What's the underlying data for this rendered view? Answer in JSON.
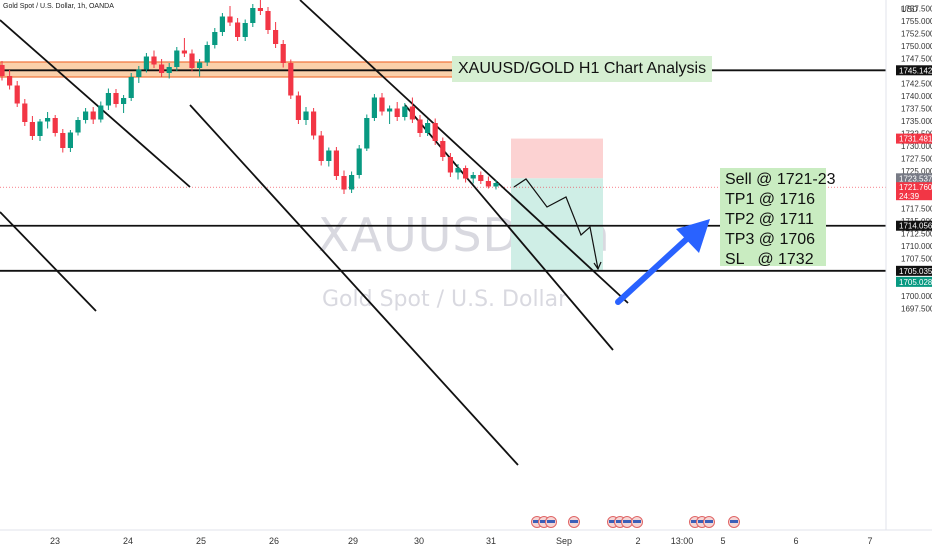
{
  "legend": "Gold Spot / U.S. Dollar, 1h, OANDA",
  "watermark": {
    "symbol": "XAUUSD, 1h",
    "name": "Gold Spot / U.S. Dollar"
  },
  "chart_title": "XAUUSD/GOLD H1 Chart Analysis",
  "trade_plan": [
    "Sell @ 1721-23",
    "TP1 @ 1716",
    "TP2 @ 1711",
    "TP3 @ 1706",
    "SL   @ 1732"
  ],
  "chart_data": {
    "type": "candlestick",
    "symbol": "XAUUSD",
    "timeframe": "1h",
    "source": "OANDA",
    "currency": "USD",
    "ylim": [
      1695,
      1760
    ],
    "y_ticks": [
      1697.5,
      1700,
      1702.5,
      1705,
      1707.5,
      1710,
      1712.5,
      1715,
      1717.5,
      1720,
      1722.5,
      1725,
      1727.5,
      1730,
      1732.5,
      1735,
      1737.5,
      1740,
      1742.5,
      1745,
      1747.5,
      1750,
      1752.5,
      1755,
      1757.5
    ],
    "x_ticks": [
      "23",
      "24",
      "25",
      "26",
      "29",
      "30",
      "31",
      "Sep",
      "2",
      "13:00",
      "5",
      "6",
      "7"
    ],
    "x_tick_positions": [
      0,
      1,
      2,
      3,
      4,
      5,
      6,
      7,
      8,
      8.6,
      9,
      10,
      11
    ],
    "price_labels": [
      {
        "value": "1745.142",
        "color": "#ffffff",
        "bg": "#111111"
      },
      {
        "value": "1731.481",
        "color": "#ffffff",
        "bg": "#f23645"
      },
      {
        "value": "1723.537",
        "color": "#ffffff",
        "bg": "#787b86"
      },
      {
        "value": "1721.760",
        "color": "#ffffff",
        "bg": "#f23645",
        "sub": "24:39"
      },
      {
        "value": "1714.056",
        "color": "#ffffff",
        "bg": "#111111"
      },
      {
        "value": "1705.035",
        "color": "#ffffff",
        "bg": "#111111"
      },
      {
        "value": "1705.028",
        "color": "#ffffff",
        "bg": "#089981"
      }
    ],
    "horizontal_levels": [
      1745.142,
      1714.056,
      1705.035
    ],
    "resistance_zone": [
      1743.8,
      1746.8
    ],
    "position": {
      "entry": 1723.537,
      "stop": 1731.481,
      "target": 1705.028
    },
    "candles": [
      [
        1746.2,
        1747.0,
        1743.1,
        1744.0
      ],
      [
        1744.0,
        1745.2,
        1741.3,
        1742.1
      ],
      [
        1742.1,
        1743.0,
        1737.8,
        1738.5
      ],
      [
        1738.5,
        1739.4,
        1734.0,
        1734.8
      ],
      [
        1734.8,
        1736.0,
        1731.2,
        1732.0
      ],
      [
        1732.0,
        1735.4,
        1731.0,
        1734.9
      ],
      [
        1734.9,
        1736.8,
        1733.5,
        1735.6
      ],
      [
        1735.6,
        1736.2,
        1731.9,
        1732.6
      ],
      [
        1732.6,
        1733.4,
        1728.7,
        1729.6
      ],
      [
        1729.6,
        1733.2,
        1728.8,
        1732.7
      ],
      [
        1732.7,
        1735.8,
        1732.1,
        1735.2
      ],
      [
        1735.2,
        1737.6,
        1734.5,
        1736.9
      ],
      [
        1736.9,
        1737.8,
        1734.4,
        1735.3
      ],
      [
        1735.3,
        1738.9,
        1734.7,
        1738.1
      ],
      [
        1738.1,
        1741.5,
        1737.2,
        1740.6
      ],
      [
        1740.6,
        1741.4,
        1737.7,
        1738.4
      ],
      [
        1738.4,
        1740.2,
        1736.6,
        1739.6
      ],
      [
        1739.6,
        1744.6,
        1739.0,
        1743.8
      ],
      [
        1743.8,
        1746.0,
        1742.6,
        1745.3
      ],
      [
        1745.3,
        1748.6,
        1744.7,
        1747.9
      ],
      [
        1747.9,
        1749.1,
        1745.6,
        1746.3
      ],
      [
        1746.3,
        1747.4,
        1743.8,
        1744.6
      ],
      [
        1744.6,
        1746.6,
        1743.5,
        1745.8
      ],
      [
        1745.8,
        1749.8,
        1745.0,
        1749.1
      ],
      [
        1749.1,
        1751.6,
        1747.8,
        1748.5
      ],
      [
        1748.5,
        1749.3,
        1744.9,
        1745.6
      ],
      [
        1745.6,
        1747.4,
        1743.9,
        1746.7
      ],
      [
        1746.7,
        1750.9,
        1746.0,
        1750.2
      ],
      [
        1750.2,
        1753.6,
        1749.5,
        1752.8
      ],
      [
        1752.8,
        1756.6,
        1752.0,
        1755.9
      ],
      [
        1755.9,
        1758.0,
        1754.0,
        1754.7
      ],
      [
        1754.7,
        1755.6,
        1751.0,
        1751.8
      ],
      [
        1751.8,
        1755.3,
        1751.0,
        1754.6
      ],
      [
        1754.6,
        1758.4,
        1753.8,
        1757.6
      ],
      [
        1757.6,
        1759.6,
        1756.2,
        1757.0
      ],
      [
        1757.0,
        1757.8,
        1752.4,
        1753.2
      ],
      [
        1753.2,
        1754.8,
        1749.6,
        1750.4
      ],
      [
        1750.4,
        1751.2,
        1745.7,
        1746.6
      ],
      [
        1746.6,
        1747.3,
        1739.4,
        1740.1
      ],
      [
        1740.1,
        1740.9,
        1734.4,
        1735.2
      ],
      [
        1735.2,
        1737.8,
        1734.2,
        1736.9
      ],
      [
        1736.9,
        1737.6,
        1731.3,
        1732.1
      ],
      [
        1732.1,
        1733.0,
        1726.1,
        1727.0
      ],
      [
        1727.0,
        1729.7,
        1725.9,
        1729.1
      ],
      [
        1729.1,
        1729.8,
        1723.2,
        1724.0
      ],
      [
        1724.0,
        1725.1,
        1720.4,
        1721.3
      ],
      [
        1721.3,
        1724.9,
        1720.6,
        1724.2
      ],
      [
        1724.2,
        1730.2,
        1723.5,
        1729.5
      ],
      [
        1729.5,
        1736.3,
        1729.0,
        1735.6
      ],
      [
        1735.6,
        1740.4,
        1735.0,
        1739.7
      ],
      [
        1739.7,
        1740.6,
        1736.1,
        1736.9
      ],
      [
        1736.9,
        1738.1,
        1734.4,
        1737.5
      ],
      [
        1737.5,
        1738.8,
        1735.0,
        1735.8
      ],
      [
        1735.8,
        1738.6,
        1735.1,
        1737.9
      ],
      [
        1737.9,
        1739.7,
        1734.6,
        1735.3
      ],
      [
        1735.3,
        1736.2,
        1731.8,
        1732.6
      ],
      [
        1732.6,
        1735.3,
        1732.0,
        1734.6
      ],
      [
        1734.6,
        1735.5,
        1730.2,
        1731.0
      ],
      [
        1731.0,
        1731.7,
        1727.0,
        1727.8
      ],
      [
        1727.8,
        1728.6,
        1723.8,
        1724.7
      ],
      [
        1724.7,
        1726.4,
        1723.3,
        1725.6
      ],
      [
        1725.6,
        1726.1,
        1722.7,
        1723.5
      ],
      [
        1723.5,
        1724.8,
        1722.5,
        1724.2
      ],
      [
        1724.2,
        1724.9,
        1722.4,
        1723.0
      ],
      [
        1723.0,
        1723.9,
        1721.5,
        1721.9
      ],
      [
        1721.9,
        1723.2,
        1721.3,
        1722.6
      ]
    ],
    "projected_path": [
      [
        1721.8,
        0
      ],
      [
        1723.4,
        1
      ],
      [
        1717.8,
        2
      ],
      [
        1719.8,
        3
      ],
      [
        1712.2,
        4
      ],
      [
        1713.8,
        5
      ],
      [
        1705.4,
        6
      ]
    ]
  }
}
